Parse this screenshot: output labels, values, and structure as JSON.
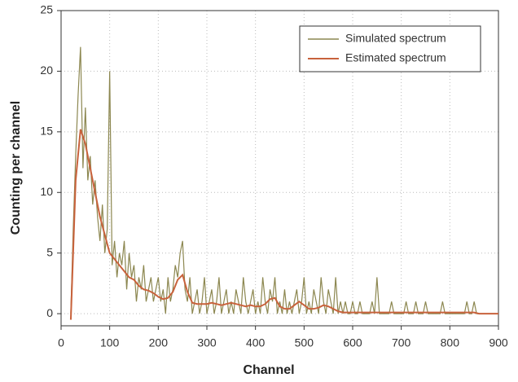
{
  "chart_data": {
    "type": "line",
    "xlabel": "Channel",
    "ylabel": "Counting per channel",
    "xlim": [
      0,
      900
    ],
    "ylim": [
      -1,
      25
    ],
    "xticks": [
      0,
      100,
      200,
      300,
      400,
      500,
      600,
      700,
      800,
      900
    ],
    "yticks": [
      0,
      5,
      10,
      15,
      20,
      25
    ],
    "grid": true,
    "legend": "upper right",
    "series": [
      {
        "name": "Simulated spectrum",
        "color": "#8c8750",
        "x": [
          20,
          25,
          30,
          35,
          40,
          45,
          50,
          55,
          60,
          65,
          70,
          75,
          80,
          85,
          90,
          95,
          100,
          105,
          110,
          115,
          120,
          125,
          130,
          135,
          140,
          145,
          150,
          155,
          160,
          165,
          170,
          175,
          180,
          185,
          190,
          195,
          200,
          205,
          210,
          215,
          220,
          225,
          230,
          235,
          240,
          245,
          250,
          255,
          260,
          265,
          270,
          275,
          280,
          285,
          290,
          295,
          300,
          305,
          310,
          315,
          320,
          325,
          330,
          335,
          340,
          345,
          350,
          355,
          360,
          365,
          370,
          375,
          380,
          385,
          390,
          395,
          400,
          405,
          410,
          415,
          420,
          425,
          430,
          435,
          440,
          445,
          450,
          455,
          460,
          465,
          470,
          475,
          480,
          485,
          490,
          495,
          500,
          505,
          510,
          515,
          520,
          525,
          530,
          535,
          540,
          545,
          550,
          555,
          560,
          565,
          570,
          575,
          580,
          585,
          590,
          595,
          600,
          605,
          610,
          615,
          620,
          625,
          630,
          635,
          640,
          645,
          650,
          655,
          660,
          665,
          670,
          675,
          680,
          685,
          690,
          695,
          700,
          705,
          710,
          715,
          720,
          725,
          730,
          735,
          740,
          745,
          750,
          755,
          760,
          765,
          770,
          775,
          780,
          785,
          790,
          795,
          800,
          805,
          810,
          815,
          820,
          825,
          830,
          835,
          840,
          845,
          850,
          855,
          860,
          865,
          870
        ],
        "values": [
          0,
          7,
          13,
          18,
          22,
          12,
          17,
          11,
          13,
          9,
          11,
          8,
          6,
          9,
          5,
          7,
          20,
          4,
          6,
          3,
          5,
          4,
          6,
          2,
          5,
          3,
          4,
          1,
          3,
          2,
          4,
          1,
          2,
          3,
          1,
          2,
          3,
          1,
          2,
          0,
          3,
          1,
          2,
          4,
          3,
          5,
          6,
          2,
          1,
          3,
          0,
          1,
          2,
          0,
          1,
          3,
          0,
          1,
          2,
          0,
          1,
          3,
          0,
          1,
          2,
          0,
          1,
          0,
          2,
          1,
          0,
          3,
          1,
          0,
          1,
          2,
          0,
          1,
          0,
          3,
          1,
          0,
          2,
          1,
          3,
          0,
          1,
          0,
          2,
          0,
          1,
          0,
          1,
          2,
          0,
          1,
          3,
          0,
          1,
          0,
          2,
          1,
          0,
          3,
          1,
          0,
          2,
          1,
          0,
          3,
          0,
          1,
          0,
          1,
          0,
          0,
          1,
          0,
          0,
          1,
          0,
          0,
          0,
          0,
          1,
          0,
          3,
          0,
          0,
          0,
          0,
          0,
          1,
          0,
          0,
          0,
          0,
          0,
          1,
          0,
          0,
          0,
          1,
          0,
          0,
          0,
          1,
          0,
          0,
          0,
          0,
          0,
          0,
          1,
          0,
          0,
          0,
          0,
          0,
          0,
          0,
          0,
          0,
          1,
          0,
          0,
          1,
          0,
          0,
          0,
          0
        ]
      },
      {
        "name": "Estimated spectrum",
        "color": "#c8623c",
        "x": [
          20,
          30,
          40,
          50,
          60,
          70,
          80,
          90,
          100,
          110,
          120,
          130,
          140,
          150,
          160,
          170,
          180,
          190,
          200,
          210,
          220,
          230,
          240,
          250,
          260,
          270,
          280,
          290,
          300,
          310,
          320,
          330,
          340,
          350,
          360,
          370,
          380,
          390,
          400,
          410,
          420,
          430,
          440,
          450,
          460,
          470,
          480,
          490,
          500,
          510,
          520,
          530,
          540,
          550,
          560,
          570,
          580,
          590,
          600,
          610,
          620,
          630,
          640,
          650,
          660,
          670,
          680,
          690,
          700,
          710,
          720,
          730,
          740,
          750,
          760,
          770,
          780,
          790,
          800,
          810,
          820,
          830,
          840,
          850,
          860,
          870,
          880,
          890,
          900
        ],
        "values": [
          -0.5,
          11,
          15.2,
          14,
          12,
          10,
          8,
          6.5,
          5,
          4.5,
          4,
          3.5,
          3,
          2.8,
          2.3,
          2,
          1.9,
          1.7,
          1.4,
          1.2,
          1.3,
          1.8,
          2.8,
          3.2,
          1.8,
          0.9,
          0.8,
          0.8,
          0.8,
          0.9,
          0.8,
          0.7,
          0.8,
          0.9,
          0.8,
          0.7,
          0.6,
          0.7,
          0.6,
          0.6,
          0.8,
          1.2,
          1.3,
          0.6,
          0.4,
          0.4,
          0.7,
          1.0,
          0.7,
          0.4,
          0.4,
          0.5,
          0.7,
          0.6,
          0.4,
          0.2,
          0.1,
          0.1,
          0.1,
          0.1,
          0.1,
          0.1,
          0.1,
          0.1,
          0.1,
          0.1,
          0.1,
          0.1,
          0.1,
          0.1,
          0.1,
          0.1,
          0.1,
          0.1,
          0.1,
          0.1,
          0.1,
          0.1,
          0.1,
          0.1,
          0.1,
          0.1,
          0.1,
          0.1,
          0,
          0,
          0,
          0,
          0
        ]
      }
    ]
  }
}
